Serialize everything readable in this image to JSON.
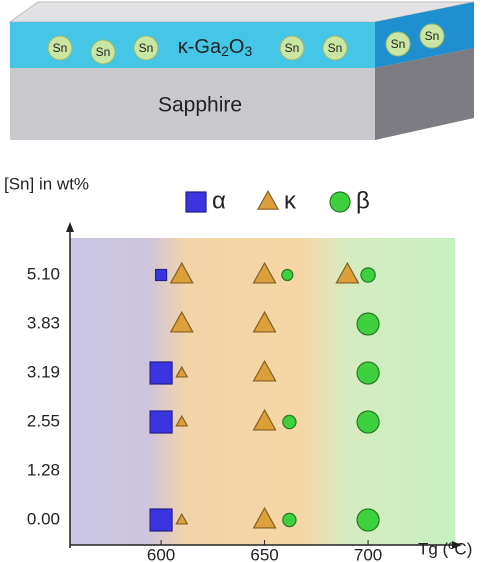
{
  "schematic": {
    "substrate": "Sapphire",
    "film_label_parts": [
      "κ-Ga",
      "2",
      "O",
      "3"
    ],
    "dopant": "Sn"
  },
  "chart_data": {
    "type": "scatter",
    "y_label": "[Sn] in wt%",
    "x_label": "Tg (ºC)",
    "categories": [
      "0.00",
      "1.28",
      "2.55",
      "3.19",
      "3.83",
      "5.10"
    ],
    "xlim": [
      556,
      742
    ],
    "xticks": [
      600,
      650,
      700
    ],
    "series": [
      {
        "name": "α",
        "marker": "square",
        "color": "#3a35e0",
        "x": [
          600,
          600,
          600,
          600
        ],
        "y": [
          "5.10",
          "3.19",
          "2.55",
          "0.00"
        ],
        "sizes": [
          0.5,
          1,
          1,
          1
        ]
      },
      {
        "name": "κ",
        "marker": "triangle",
        "color": "#dba03a",
        "x": [
          610,
          650,
          690,
          610,
          650,
          610,
          650,
          610,
          650,
          610,
          650
        ],
        "y": [
          "5.10",
          "5.10",
          "5.10",
          "3.83",
          "3.83",
          "3.19",
          "3.19",
          "2.55",
          "2.55",
          "0.00",
          "0.00"
        ],
        "sizes": [
          1,
          1,
          1,
          1,
          1,
          0.5,
          1,
          0.5,
          1,
          0.5,
          1
        ]
      },
      {
        "name": "β",
        "marker": "circle",
        "color": "#3fd03f",
        "x": [
          661,
          700,
          700,
          700,
          662,
          700,
          662,
          700
        ],
        "y": [
          "5.10",
          "5.10",
          "3.83",
          "3.19",
          "2.55",
          "2.55",
          "0.00",
          "0.00"
        ],
        "sizes": [
          0.5,
          0.65,
          1,
          1,
          0.6,
          1,
          0.6,
          1
        ]
      }
    ]
  }
}
